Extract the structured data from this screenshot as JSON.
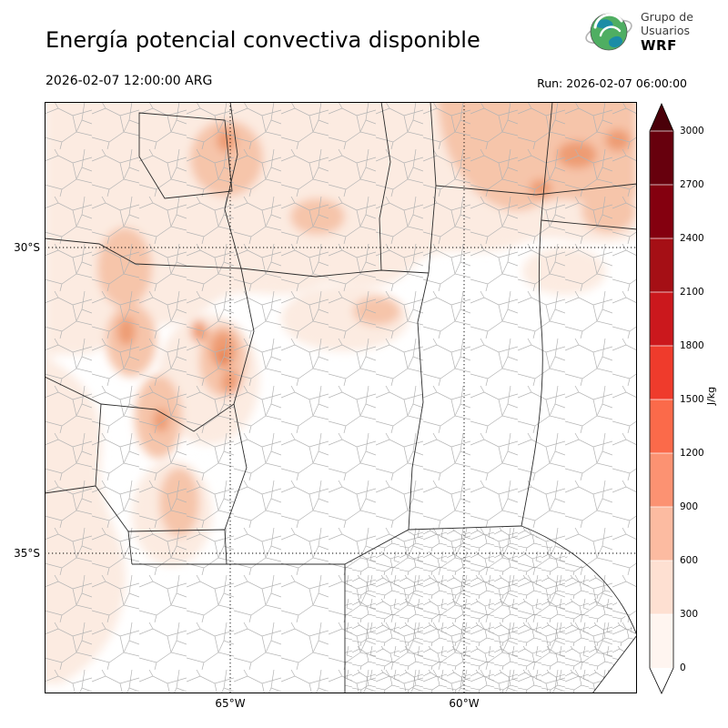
{
  "header": {
    "title": "Energía potencial convectiva disponible",
    "logo": {
      "line1": "Grupo de",
      "line2": "Usuarios",
      "line3": "WRF"
    }
  },
  "subheader": {
    "valid_time": "2026-02-07 12:00:00 ARG",
    "run_label": "Run: 2026-02-07 06:00:00"
  },
  "map": {
    "lat_ticks": [
      "30°S",
      "35°S"
    ],
    "lon_ticks": [
      "65°W",
      "60°W"
    ]
  },
  "colorbar": {
    "unit": "J/kg",
    "ticks": [
      "0",
      "300",
      "600",
      "900",
      "1200",
      "1500",
      "1800",
      "2100",
      "2400",
      "2700",
      "3000"
    ],
    "colors_low_to_high": [
      "#fff5f0",
      "#fee0d2",
      "#fcbba1",
      "#fc9272",
      "#fb6a4a",
      "#ef3b2c",
      "#cb181d",
      "#a50f15",
      "#84000f",
      "#67000d"
    ],
    "over_color": "#4a0009",
    "under_color": "#ffffff"
  },
  "chart_data": {
    "type": "heatmap",
    "title": "Energía potencial convectiva disponible",
    "colorbar_label": "J/kg",
    "levels": [
      0,
      300,
      600,
      900,
      1200,
      1500,
      1800,
      2100,
      2400,
      2700,
      3000
    ],
    "x_tick_labels": [
      "65°W",
      "60°W"
    ],
    "y_tick_labels": [
      "30°S",
      "35°S"
    ],
    "legend_position": "right",
    "valid_time": "2026-02-07 12:00:00 ARG",
    "run_time": "Run: 2026-02-07 06:00:00"
  }
}
